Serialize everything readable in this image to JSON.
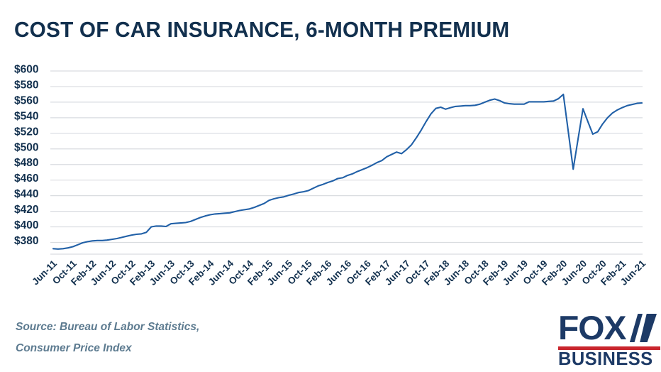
{
  "title": "COST OF CAR INSURANCE, 6-MONTH PREMIUM",
  "source": {
    "line1": "Source: Bureau of Labor Statistics,",
    "line2": "Consumer Price Index"
  },
  "logo": {
    "fox": "FOX",
    "business": "BUSINESS",
    "navy": "#1d3a66",
    "red": "#c9252d"
  },
  "colors": {
    "title_navy": "#12304e",
    "axis_label_navy": "#12304e",
    "line_blue": "#2160a7",
    "gridline_gray": "#d9dce0",
    "source_slate": "#5d7b90"
  },
  "chart_data": {
    "type": "line",
    "title": "COST OF CAR INSURANCE, 6-MONTH PREMIUM",
    "series_name": "6-month car insurance premium (USD)",
    "legend": "none",
    "grid": "horizontal",
    "ylim": [
      380,
      600
    ],
    "y_ticks": [
      380,
      400,
      420,
      440,
      460,
      480,
      500,
      520,
      540,
      560,
      580,
      600
    ],
    "y_tick_labels": [
      "$380",
      "$400",
      "$420",
      "$440",
      "$460",
      "$480",
      "$500",
      "$520",
      "$540",
      "$560",
      "$580",
      "$600"
    ],
    "x_tick_labels": [
      "Jun-11",
      "Oct-11",
      "Feb-12",
      "Jun-12",
      "Oct-12",
      "Feb-13",
      "Jun-13",
      "Oct-13",
      "Feb-14",
      "Jun-14",
      "Oct-14",
      "Feb-15",
      "Jun-15",
      "Oct-15",
      "Feb-16",
      "Jun-16",
      "Oct-16",
      "Feb-17",
      "Jun-17",
      "Oct-17",
      "Feb-18",
      "Jun-18",
      "Oct-18",
      "Feb-19",
      "Jun-19",
      "Oct-19",
      "Feb-20",
      "Jun-20",
      "Oct-20",
      "Feb-21",
      "Jun-21"
    ],
    "points_per_tick": 4,
    "frequency": "monthly",
    "values": [
      372,
      371.5,
      372,
      373,
      374.5,
      377,
      379.5,
      381,
      382,
      382.5,
      382.5,
      383,
      384,
      385,
      386.5,
      388,
      389.5,
      390.5,
      391,
      393,
      400,
      401,
      401,
      400.5,
      404,
      404.5,
      405,
      405.5,
      407,
      409.5,
      412,
      414,
      415.5,
      416.5,
      417,
      417.5,
      418,
      419.5,
      421,
      422,
      423,
      425,
      427.5,
      430,
      434,
      436,
      437.5,
      438.5,
      440.5,
      442,
      444,
      445,
      446.5,
      449.5,
      452.5,
      454.5,
      457,
      459,
      462,
      463,
      466,
      468,
      471,
      473.5,
      476,
      479,
      482.5,
      485,
      490,
      493,
      496,
      494,
      499,
      505,
      514,
      524,
      535,
      545,
      552,
      553.5,
      551,
      553,
      554.5,
      555,
      555.5,
      555.5,
      556,
      557.5,
      560,
      562.5,
      564,
      562,
      559,
      558,
      557.5,
      557.5,
      557.5,
      560.5,
      560.5,
      560.5,
      560.5,
      561,
      561.5,
      564.5,
      570,
      522,
      474,
      513,
      551.5,
      535,
      519,
      522,
      532,
      540,
      546,
      550,
      553,
      555.5,
      557,
      558.5,
      559
    ]
  }
}
